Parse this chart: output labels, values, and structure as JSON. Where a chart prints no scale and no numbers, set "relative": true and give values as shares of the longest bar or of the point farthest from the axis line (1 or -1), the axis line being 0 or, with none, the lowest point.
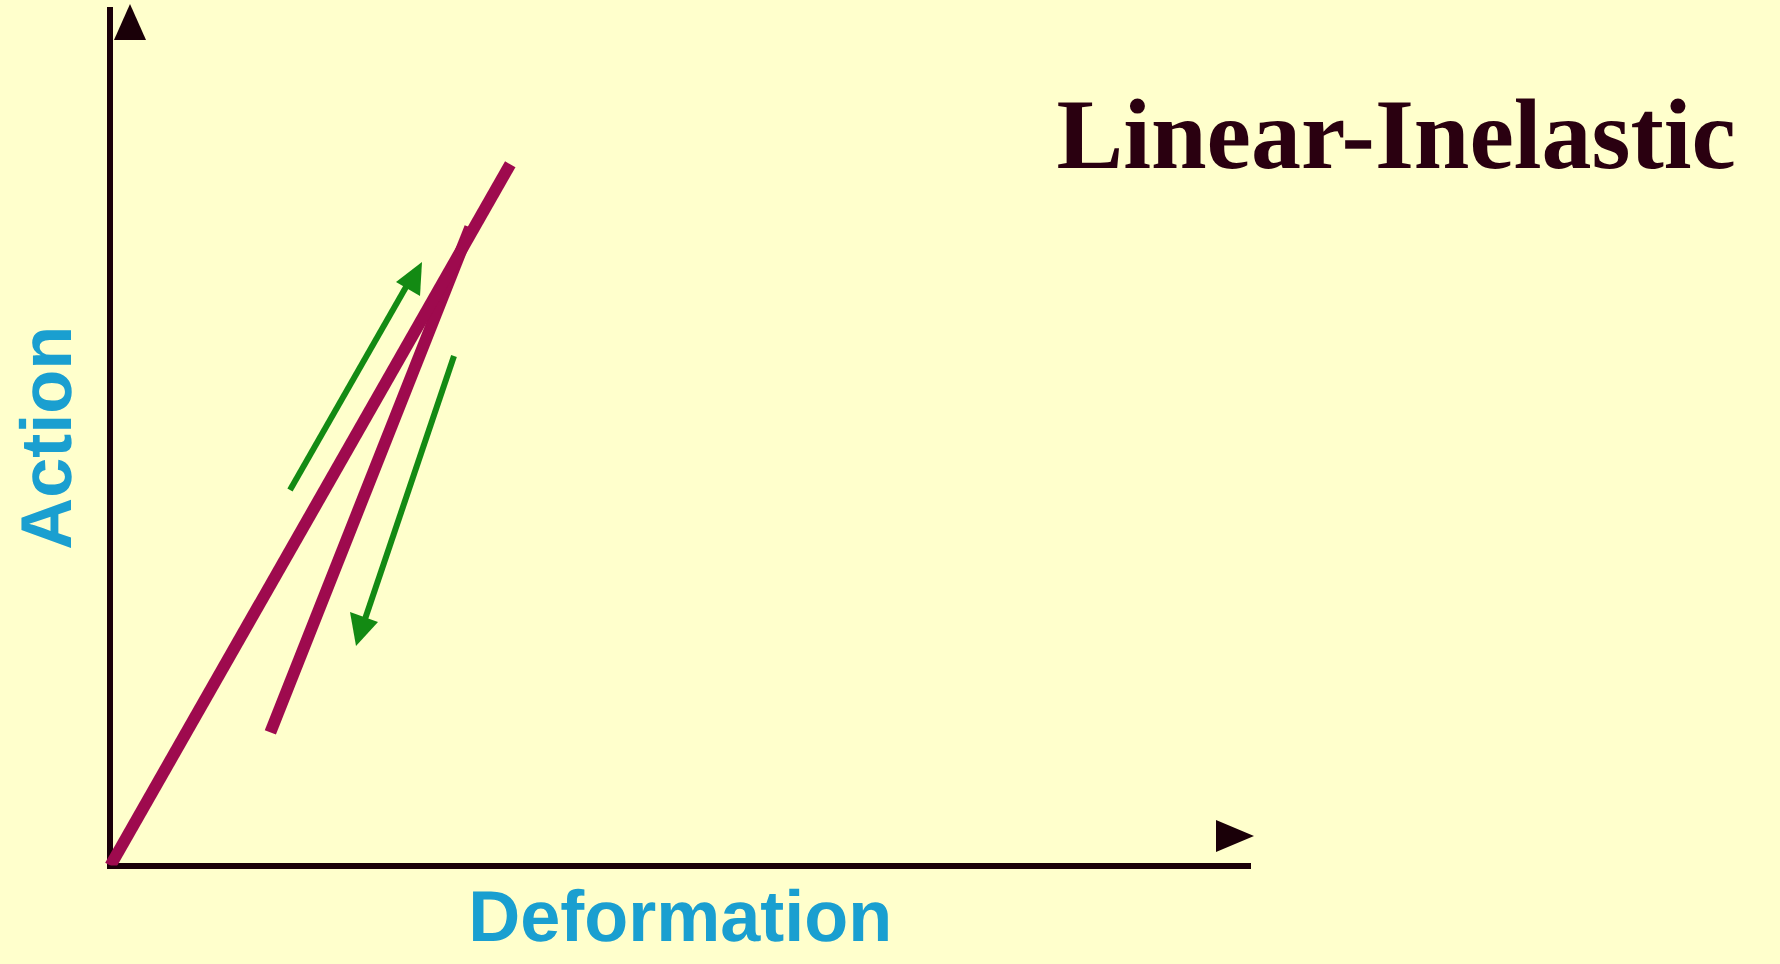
{
  "chart_data": {
    "type": "line",
    "title": "Linear-Inelastic",
    "xlabel": "Deformation",
    "ylabel": "Action",
    "relative": true,
    "marker": "none",
    "line_style": "solid",
    "categories": [
      null,
      null,
      null,
      null,
      null,
      null,
      null,
      null,
      null,
      null,
      null,
      null,
      null,
      null,
      null,
      null,
      null,
      null,
      null,
      null,
      null,
      null,
      null,
      null,
      null,
      null,
      null,
      null,
      null,
      null,
      null,
      null,
      null,
      null,
      null,
      null,
      null,
      null,
      null,
      null,
      null,
      null,
      null,
      null,
      null,
      null,
      null,
      null,
      null,
      null,
      null,
      null,
      null,
      null,
      null,
      null,
      null,
      null
    ],
    "series": [
      {
        "color": "#9e0a4e",
        "values": [
          0,
          null,
          null,
          null,
          null,
          null,
          null,
          null,
          null,
          null,
          null,
          null,
          null,
          null,
          null,
          null,
          null,
          null,
          null,
          null,
          1,
          null,
          null,
          null,
          null,
          null,
          null,
          null,
          null,
          null,
          null,
          null,
          null,
          null,
          null,
          null,
          null,
          null,
          null,
          null,
          null,
          null,
          null,
          null,
          null,
          null,
          null,
          null,
          null,
          null,
          null,
          null,
          null,
          null,
          null,
          null,
          null,
          null
        ]
      },
      {
        "color": "#9e0a4e",
        "values": [
          null,
          null,
          null,
          null,
          null,
          null,
          null,
          null,
          0.19,
          null,
          null,
          null,
          null,
          null,
          null,
          null,
          null,
          null,
          0.91,
          null,
          null,
          null,
          null,
          null,
          null,
          null,
          null,
          null,
          null,
          null,
          null,
          null,
          null,
          null,
          null,
          null,
          null,
          null,
          null,
          null,
          null,
          null,
          null,
          null,
          null,
          null,
          null,
          null,
          null,
          null,
          null,
          null,
          null,
          null,
          null,
          null,
          null,
          null
        ]
      }
    ]
  }
}
